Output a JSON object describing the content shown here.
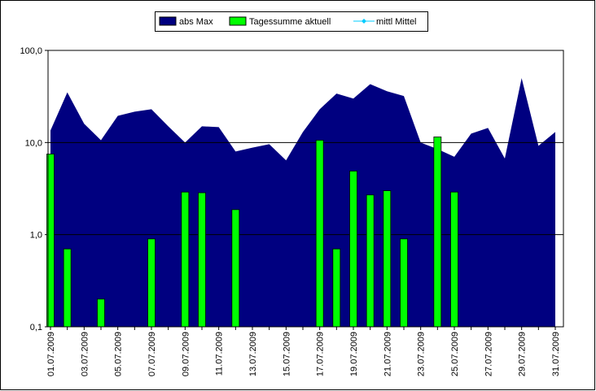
{
  "chart_data": {
    "type": "area-bar",
    "legend": "top",
    "ylog": true,
    "grid": true,
    "categories": [
      "01.07.2009",
      null,
      "03.07.2009",
      null,
      "05.07.2009",
      null,
      "07.07.2009",
      null,
      "09.07.2009",
      null,
      "11.07.2009",
      null,
      "13.07.2009",
      null,
      "15.07.2009",
      null,
      "17.07.2009",
      null,
      "19.07.2009",
      null,
      "21.07.2009",
      null,
      "23.07.2009",
      null,
      "25.07.2009",
      null,
      "27.07.2009",
      null,
      "29.07.2009",
      null,
      "31.07.2009"
    ],
    "series": [
      {
        "name": "abs Max",
        "kind": "area",
        "color": "#000080",
        "values": [
          13.5,
          35,
          16,
          10.6,
          19.5,
          21.6,
          23,
          15,
          10,
          15,
          14.7,
          8,
          8.8,
          9.6,
          6.4,
          13,
          23,
          34,
          30,
          43,
          36,
          32,
          10,
          8.5,
          7,
          12.5,
          14.4,
          6.7,
          50,
          9.2,
          13
        ]
      },
      {
        "name": "Tagessumme aktuell",
        "kind": "bar",
        "color": "#00ff00",
        "values": [
          7.5,
          0.7,
          null,
          0.2,
          null,
          null,
          0.9,
          null,
          2.9,
          2.85,
          null,
          1.87,
          null,
          null,
          null,
          null,
          10.6,
          0.7,
          4.9,
          2.7,
          3,
          0.9,
          null,
          11.5,
          2.9,
          null,
          null,
          null,
          null,
          null,
          null
        ]
      },
      {
        "name": "mittl Mittel",
        "kind": "line",
        "color": "#00ccff",
        "values": [
          null,
          null,
          null,
          null,
          null,
          null,
          null,
          null,
          null,
          null,
          null,
          null,
          null,
          null,
          null,
          null,
          null,
          null,
          null,
          null,
          null,
          null,
          null,
          null,
          null,
          null,
          null,
          null,
          null,
          null,
          null
        ]
      }
    ],
    "ylim": [
      0.1,
      100
    ],
    "yticks": [
      {
        "value": 0.1,
        "label": "0,1"
      },
      {
        "value": 1,
        "label": "1,0"
      },
      {
        "value": 10,
        "label": "10,0"
      },
      {
        "value": 100,
        "label": "100,0"
      }
    ]
  }
}
